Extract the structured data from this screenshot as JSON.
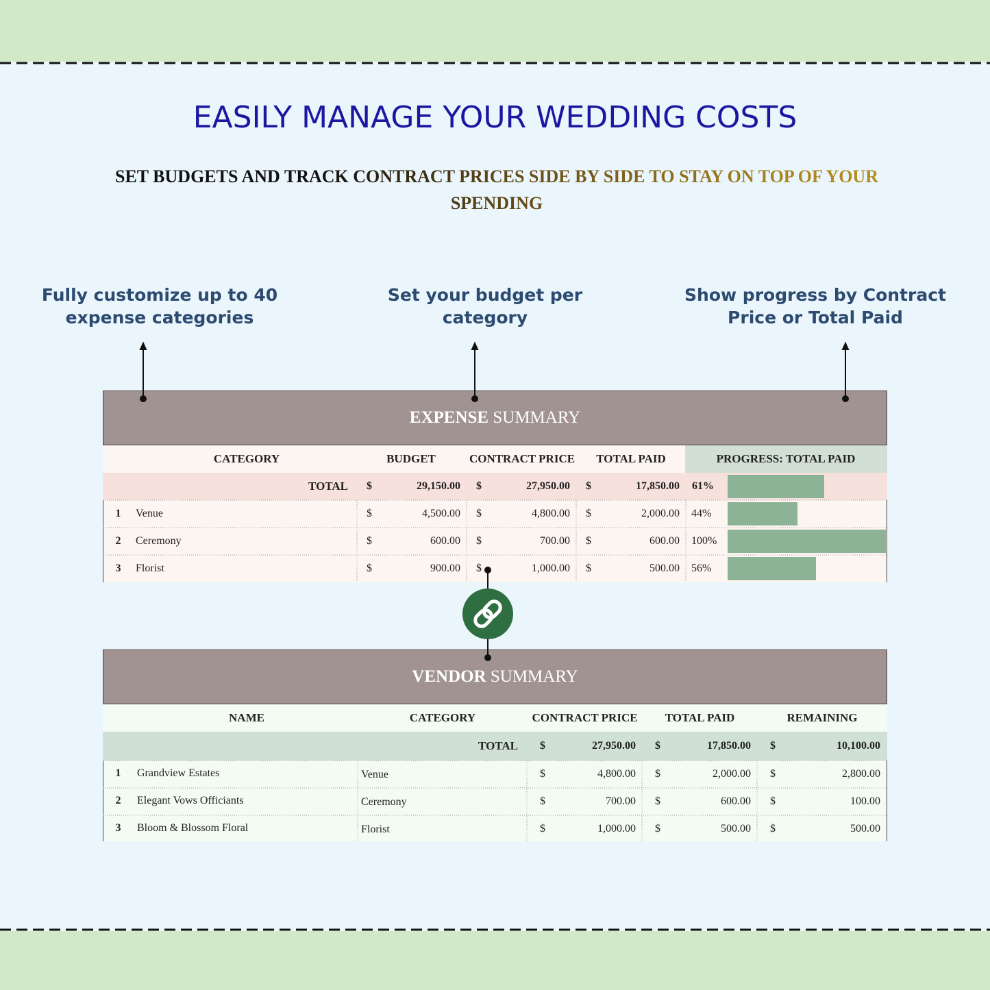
{
  "header": {
    "title": "EASILY MANAGE YOUR WEDDING COSTS",
    "subtitle": "SET BUDGETS AND TRACK CONTRACT PRICES SIDE BY SIDE TO STAY ON TOP OF YOUR SPENDING"
  },
  "callouts": [
    "Fully customize up to 40 expense categories",
    "Set your budget per category",
    "Show progress by Contract Price or Total Paid"
  ],
  "currency": "$",
  "expense_summary": {
    "title_bold": "EXPENSE",
    "title_rest": "SUMMARY",
    "columns": [
      "CATEGORY",
      "BUDGET",
      "CONTRACT PRICE",
      "TOTAL PAID",
      "PROGRESS: TOTAL PAID"
    ],
    "total": {
      "label": "TOTAL",
      "budget": "29,150.00",
      "contract_price": "27,950.00",
      "total_paid": "17,850.00",
      "progress": {
        "value": 61,
        "label": "61%"
      }
    },
    "rows": [
      {
        "index": 1,
        "category": "Venue",
        "budget": "4,500.00",
        "contract_price": "4,800.00",
        "total_paid": "2,000.00",
        "progress": {
          "value": 44,
          "label": "44%"
        }
      },
      {
        "index": 2,
        "category": "Ceremony",
        "budget": "600.00",
        "contract_price": "700.00",
        "total_paid": "600.00",
        "progress": {
          "value": 100,
          "label": "100%"
        }
      },
      {
        "index": 3,
        "category": "Florist",
        "budget": "900.00",
        "contract_price": "1,000.00",
        "total_paid": "500.00",
        "progress": {
          "value": 56,
          "label": "56%"
        }
      }
    ]
  },
  "vendor_summary": {
    "title_bold": "VENDOR",
    "title_rest": "SUMMARY",
    "columns": [
      "NAME",
      "CATEGORY",
      "CONTRACT PRICE",
      "TOTAL PAID",
      "REMAINING"
    ],
    "total": {
      "label": "TOTAL",
      "contract_price": "27,950.00",
      "total_paid": "17,850.00",
      "remaining": "10,100.00"
    },
    "rows": [
      {
        "index": 1,
        "name": "Grandview Estates",
        "category": "Venue",
        "contract_price": "4,800.00",
        "total_paid": "2,000.00",
        "remaining": "2,800.00"
      },
      {
        "index": 2,
        "name": "Elegant Vows Officiants",
        "category": "Ceremony",
        "contract_price": "700.00",
        "total_paid": "600.00",
        "remaining": "100.00"
      },
      {
        "index": 3,
        "name": "Bloom & Blossom Floral",
        "category": "Florist",
        "contract_price": "1,000.00",
        "total_paid": "500.00",
        "remaining": "500.00"
      }
    ]
  }
}
